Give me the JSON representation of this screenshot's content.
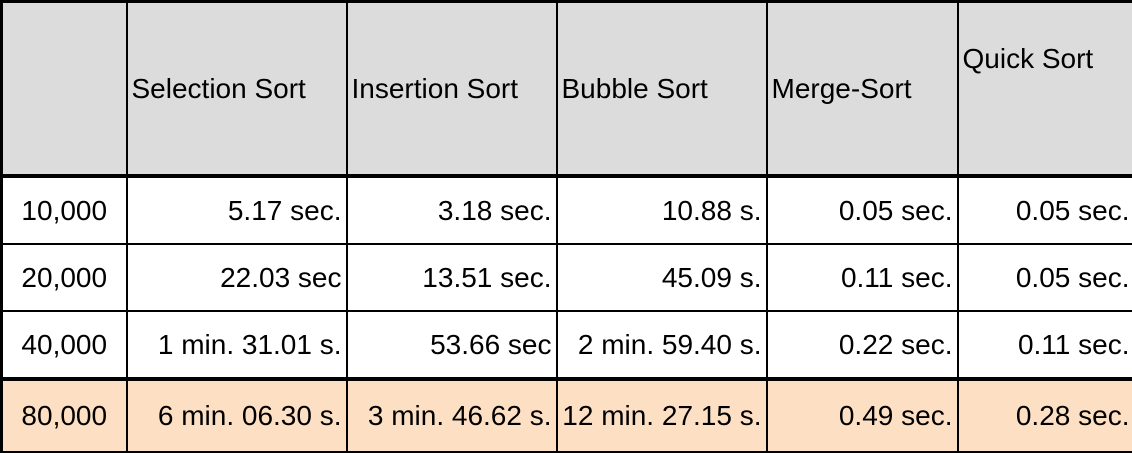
{
  "chart_data": {
    "type": "table",
    "title": "",
    "columns": [
      "",
      "Selection Sort",
      "Insertion Sort",
      "Bubble Sort",
      "Merge-Sort",
      "Quick Sort"
    ],
    "rows": [
      {
        "label": "10,000",
        "values": [
          "5.17 sec.",
          "3.18 sec.",
          "10.88 s.",
          "0.05 sec.",
          "0.05 sec."
        ]
      },
      {
        "label": "20,000",
        "values": [
          "22.03 sec",
          "13.51 sec.",
          "45.09 s.",
          "0.11 sec.",
          "0.05 sec."
        ]
      },
      {
        "label": "40,000",
        "values": [
          "1 min. 31.01 s.",
          "53.66 sec",
          "2 min. 59.40 s.",
          "0.22 sec.",
          "0.11 sec."
        ]
      },
      {
        "label": "80,000",
        "values": [
          "6 min. 06.30 s.",
          "3 min. 46.62 s.",
          "12 min. 27.15 s.",
          "0.49 sec.",
          "0.28 sec."
        ]
      }
    ],
    "highlight_row": 3,
    "colors": {
      "header_bg": "#dcdcdc",
      "highlight_bg": "#fde0c4",
      "border": "#000000"
    }
  }
}
